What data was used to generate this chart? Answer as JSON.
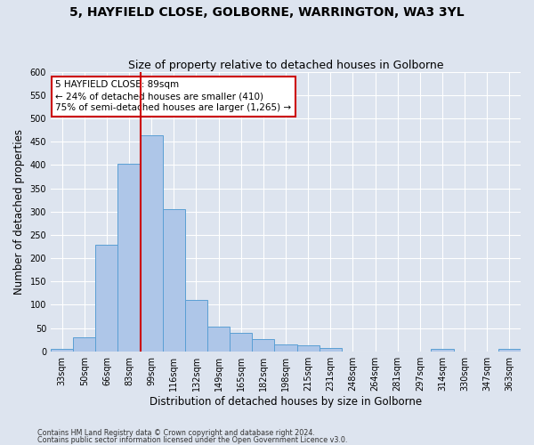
{
  "title_line1": "5, HAYFIELD CLOSE, GOLBORNE, WARRINGTON, WA3 3YL",
  "title_line2": "Size of property relative to detached houses in Golborne",
  "xlabel": "Distribution of detached houses by size in Golborne",
  "ylabel": "Number of detached properties",
  "footnote1": "Contains HM Land Registry data © Crown copyright and database right 2024.",
  "footnote2": "Contains public sector information licensed under the Open Government Licence v3.0.",
  "bin_labels": [
    "33sqm",
    "50sqm",
    "66sqm",
    "83sqm",
    "99sqm",
    "116sqm",
    "132sqm",
    "149sqm",
    "165sqm",
    "182sqm",
    "198sqm",
    "215sqm",
    "231sqm",
    "248sqm",
    "264sqm",
    "281sqm",
    "297sqm",
    "314sqm",
    "330sqm",
    "347sqm",
    "363sqm"
  ],
  "bar_values": [
    6,
    30,
    228,
    403,
    463,
    305,
    110,
    53,
    39,
    26,
    14,
    12,
    8,
    0,
    0,
    0,
    0,
    5,
    0,
    0,
    5
  ],
  "bar_color": "#aec6e8",
  "bar_edge_color": "#5a9fd4",
  "annotation_text": "5 HAYFIELD CLOSE: 89sqm\n← 24% of detached houses are smaller (410)\n75% of semi-detached houses are larger (1,265) →",
  "annotation_box_color": "#ffffff",
  "annotation_box_edge_color": "#cc0000",
  "vline_x_index": 3.5,
  "vline_color": "#cc0000",
  "ylim": [
    0,
    600
  ],
  "yticks": [
    0,
    50,
    100,
    150,
    200,
    250,
    300,
    350,
    400,
    450,
    500,
    550,
    600
  ],
  "background_color": "#dde4ef",
  "plot_bg_color": "#dde4ef",
  "grid_color": "#ffffff",
  "title_fontsize": 10,
  "subtitle_fontsize": 9,
  "axis_label_fontsize": 8.5,
  "tick_fontsize": 7,
  "annotation_fontsize": 7.5
}
